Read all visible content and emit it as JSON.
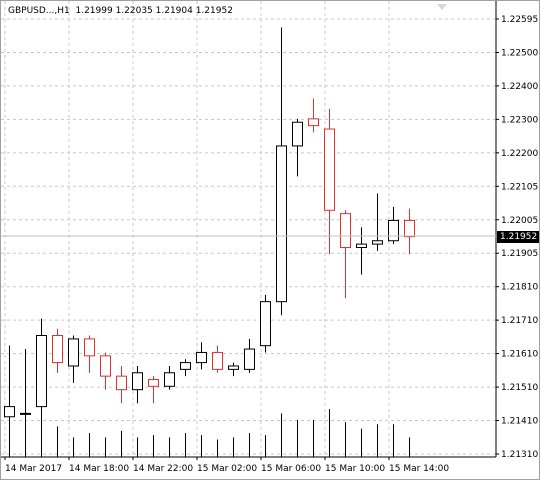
{
  "chart": {
    "symbol_timeframe": "GBPUSD...,H1",
    "ohlc_readout": "1.21999 1.22035 1.21904 1.21952",
    "current_price_label": "1.21952",
    "collapse_icon": "triangle-down-icon"
  },
  "colors": {
    "background": "#ffffff",
    "grid": "#c8c8c8",
    "bull_candle": "#000000",
    "bear_candle": "#e03030",
    "volume": "#000000",
    "price_marker": "#000000"
  },
  "chart_data": {
    "type": "candlestick",
    "symbol": "GBPUSD",
    "timeframe": "H1",
    "grid": true,
    "y_ticks": [
      "1.22595",
      "1.22500",
      "1.22400",
      "1.22300",
      "1.22200",
      "1.22105",
      "1.22005",
      "1.21905",
      "1.21810",
      "1.21710",
      "1.21610",
      "1.21510",
      "1.21410",
      "1.21310"
    ],
    "x_ticks": [
      "14 Mar 2017",
      "14 Mar 18:00",
      "14 Mar 22:00",
      "15 Mar 02:00",
      "15 Mar 06:00",
      "15 Mar 10:00",
      "15 Mar 14:00"
    ],
    "candles": [
      {
        "o": 1.2142,
        "h": 1.2163,
        "l": 1.2137,
        "c": 1.2145
      },
      {
        "o": 1.2143,
        "h": 1.2162,
        "l": 1.2136,
        "c": 1.2143
      },
      {
        "o": 1.2145,
        "h": 1.2171,
        "l": 1.2141,
        "c": 1.2166
      },
      {
        "o": 1.2166,
        "h": 1.2168,
        "l": 1.2155,
        "c": 1.2158
      },
      {
        "o": 1.2157,
        "h": 1.2166,
        "l": 1.2152,
        "c": 1.2165
      },
      {
        "o": 1.2165,
        "h": 1.2166,
        "l": 1.2155,
        "c": 1.216
      },
      {
        "o": 1.216,
        "h": 1.2161,
        "l": 1.215,
        "c": 1.2154
      },
      {
        "o": 1.2154,
        "h": 1.2157,
        "l": 1.2146,
        "c": 1.215
      },
      {
        "o": 1.215,
        "h": 1.2157,
        "l": 1.2146,
        "c": 1.2155
      },
      {
        "o": 1.2153,
        "h": 1.2154,
        "l": 1.2146,
        "c": 1.2151
      },
      {
        "o": 1.2151,
        "h": 1.2157,
        "l": 1.215,
        "c": 1.2155
      },
      {
        "o": 1.2156,
        "h": 1.2159,
        "l": 1.2154,
        "c": 1.2158
      },
      {
        "o": 1.2158,
        "h": 1.2164,
        "l": 1.2156,
        "c": 1.2161
      },
      {
        "o": 1.2161,
        "h": 1.2163,
        "l": 1.2155,
        "c": 1.2156
      },
      {
        "o": 1.2156,
        "h": 1.2158,
        "l": 1.2154,
        "c": 1.2157
      },
      {
        "o": 1.2156,
        "h": 1.2165,
        "l": 1.2155,
        "c": 1.2162
      },
      {
        "o": 1.2163,
        "h": 1.2178,
        "l": 1.2161,
        "c": 1.2176
      },
      {
        "o": 1.2176,
        "h": 1.2257,
        "l": 1.2172,
        "c": 1.2222
      },
      {
        "o": 1.2222,
        "h": 1.223,
        "l": 1.2213,
        "c": 1.2229
      },
      {
        "o": 1.223,
        "h": 1.2236,
        "l": 1.2226,
        "c": 1.2228
      },
      {
        "o": 1.2227,
        "h": 1.2233,
        "l": 1.219,
        "c": 1.2203
      },
      {
        "o": 1.2202,
        "h": 1.2203,
        "l": 1.2177,
        "c": 1.2192
      },
      {
        "o": 1.2192,
        "h": 1.2198,
        "l": 1.2184,
        "c": 1.2193
      },
      {
        "o": 1.2193,
        "h": 1.2208,
        "l": 1.2191,
        "c": 1.2194
      },
      {
        "o": 1.2194,
        "h": 1.2204,
        "l": 1.2193,
        "c": 1.22
      },
      {
        "o": 1.22,
        "h": 1.22035,
        "l": 1.219,
        "c": 1.21952
      }
    ],
    "volume": [
      1.0,
      0.55,
      1.0,
      0.7,
      0.45,
      0.55,
      0.45,
      0.6,
      0.45,
      0.5,
      0.45,
      0.55,
      0.5,
      0.4,
      0.45,
      0.55,
      0.5,
      1.0,
      0.85,
      0.85,
      1.1,
      0.8,
      0.65,
      0.75,
      0.75,
      0.45
    ]
  }
}
